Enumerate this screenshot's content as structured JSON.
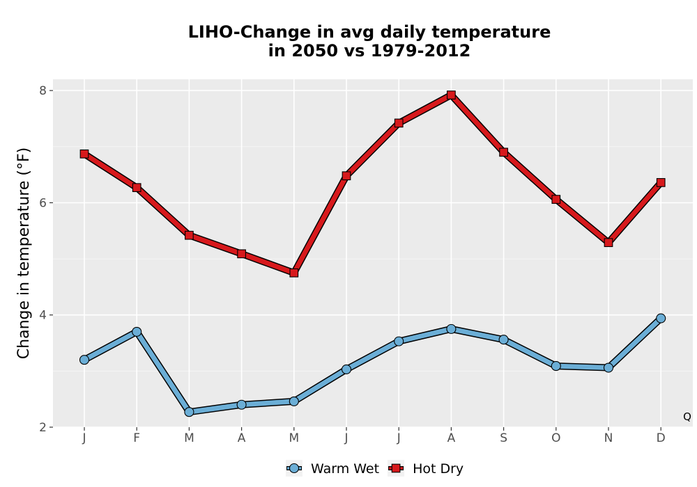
{
  "chart_data": {
    "type": "line",
    "title_line1": "LIHO-Change in avg daily temperature",
    "title_line2": "in 2050 vs 1979-2012",
    "xlabel": "",
    "ylabel": "Change in temperature (°F)",
    "categories": [
      "J",
      "F",
      "M",
      "A",
      "M",
      "J",
      "J",
      "A",
      "S",
      "O",
      "N",
      "D"
    ],
    "y_ticks": [
      2,
      4,
      6,
      8
    ],
    "ylim": [
      2,
      8.2
    ],
    "grid": true,
    "legend_position": "bottom",
    "corner_label": "Q",
    "series": [
      {
        "name": "Warm Wet",
        "marker": "circle",
        "color": "#6baed6",
        "values": [
          3.2,
          3.7,
          2.27,
          2.4,
          2.46,
          3.03,
          3.53,
          3.75,
          3.56,
          3.09,
          3.06,
          3.94
        ]
      },
      {
        "name": "Hot Dry",
        "marker": "square",
        "color": "#d7191c",
        "values": [
          6.87,
          6.27,
          5.42,
          5.09,
          4.75,
          6.48,
          7.42,
          7.92,
          6.9,
          6.06,
          5.29,
          6.36
        ]
      }
    ]
  }
}
